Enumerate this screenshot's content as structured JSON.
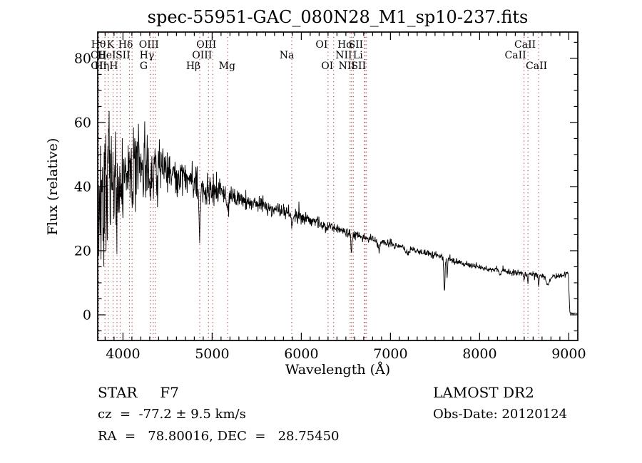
{
  "title": "spec-55951-GAC_080N28_M1_sp10-237.fits",
  "footer": {
    "class_label": "STAR     F7",
    "survey": "LAMOST DR2",
    "cz": "cz  =  -77.2 ± 9.5 km/s",
    "obs_date": "Obs-Date: 20120124",
    "radec": "RA  =   78.80016, DEC  =   28.75450"
  },
  "chart_data": {
    "type": "line",
    "title": "spec-55951-GAC_080N28_M1_sp10-237.fits",
    "xlabel": "Wavelength (Å)",
    "ylabel": "Flux (relative)",
    "xlim": [
      3717,
      9101
    ],
    "ylim": [
      -8,
      88.2
    ],
    "xticks": [
      4000,
      5000,
      6000,
      7000,
      8000,
      9000
    ],
    "yticks": [
      0,
      20,
      40,
      60,
      80
    ],
    "x_minor_step": 100,
    "y_minor_step": 5,
    "grid": false,
    "line_color": "#000000",
    "marker_line_color": "#a03434",
    "spectral_lines": [
      {
        "wavelength": 3727,
        "label": "OII",
        "row": 2,
        "dx": 9
      },
      {
        "wavelength": 3729,
        "label": "OII",
        "row": 3,
        "dx": 9
      },
      {
        "wavelength": 3798,
        "label": "Hθ",
        "row": 1,
        "dx": 0
      },
      {
        "wavelength": 3835,
        "label": "Hη",
        "row": 3,
        "dx": 0
      },
      {
        "wavelength": 3889,
        "label": "HeI",
        "row": 2,
        "dx": 0
      },
      {
        "wavelength": 3933,
        "label": "K",
        "row": 1,
        "dx": 0
      },
      {
        "wavelength": 3968,
        "label": "H",
        "row": 3,
        "dx": 0
      },
      {
        "wavelength": 4072,
        "label": "SII",
        "row": 2,
        "dx": 0
      },
      {
        "wavelength": 4102,
        "label": "Hδ",
        "row": 1,
        "dx": 0
      },
      {
        "wavelength": 4305,
        "label": "G",
        "row": 3,
        "dx": 0
      },
      {
        "wavelength": 4340,
        "label": "Hγ",
        "row": 2,
        "dx": 0
      },
      {
        "wavelength": 4363,
        "label": "OIII",
        "row": 1,
        "dx": 0
      },
      {
        "wavelength": 4861,
        "label": "Hβ",
        "row": 3,
        "dx": 0
      },
      {
        "wavelength": 4959,
        "label": "OIII",
        "row": 2,
        "dx": 0
      },
      {
        "wavelength": 5007,
        "label": "OIII",
        "row": 1,
        "dx": 0
      },
      {
        "wavelength": 5175,
        "label": "Mg",
        "row": 3,
        "dx": 8
      },
      {
        "wavelength": 5893,
        "label": "Na",
        "row": 2,
        "dx": 2
      },
      {
        "wavelength": 6300,
        "label": "OI",
        "row": 1,
        "dx": 0
      },
      {
        "wavelength": 6363,
        "label": "OI",
        "row": 3,
        "dx": 0
      },
      {
        "wavelength": 6548,
        "label": "NII",
        "row": 2,
        "dx": 0
      },
      {
        "wavelength": 6563,
        "label": "Hα",
        "row": 1,
        "dx": 0
      },
      {
        "wavelength": 6583,
        "label": "NII",
        "row": 3,
        "dx": 0
      },
      {
        "wavelength": 6707,
        "label": "Li",
        "row": 2,
        "dx": 0
      },
      {
        "wavelength": 6716,
        "label": "SII",
        "row": 1,
        "dx": -4
      },
      {
        "wavelength": 6731,
        "label": "SII",
        "row": 3,
        "dx": -2
      },
      {
        "wavelength": 8498,
        "label": "CaII",
        "row": 2,
        "dx": -3
      },
      {
        "wavelength": 8542,
        "label": "CaII",
        "row": 1,
        "dx": 5
      },
      {
        "wavelength": 8662,
        "label": "CaII",
        "row": 3,
        "dx": 6
      }
    ],
    "continuum": [
      [
        3718,
        33
      ],
      [
        3760,
        38
      ],
      [
        3810,
        41
      ],
      [
        3860,
        42.5
      ],
      [
        3920,
        43.5
      ],
      [
        4000,
        44.5
      ],
      [
        4090,
        45.5
      ],
      [
        4190,
        46.5
      ],
      [
        4340,
        46.5
      ],
      [
        4490,
        45
      ],
      [
        4590,
        44
      ],
      [
        4690,
        42.5
      ],
      [
        4790,
        40.8
      ],
      [
        4890,
        39.5
      ],
      [
        5040,
        38.5
      ],
      [
        5190,
        37
      ],
      [
        5340,
        36
      ],
      [
        5490,
        34.8
      ],
      [
        5640,
        33.5
      ],
      [
        5790,
        32.3
      ],
      [
        5940,
        31
      ],
      [
        6090,
        29.6
      ],
      [
        6240,
        28.3
      ],
      [
        6390,
        27
      ],
      [
        6540,
        25.6
      ],
      [
        6690,
        24.4
      ],
      [
        6840,
        23.2
      ],
      [
        6990,
        22.1
      ],
      [
        7140,
        21
      ],
      [
        7290,
        20
      ],
      [
        7440,
        19
      ],
      [
        7590,
        17.9
      ],
      [
        7740,
        16.6
      ],
      [
        7890,
        15.4
      ],
      [
        8050,
        14.6
      ],
      [
        8210,
        13.9
      ],
      [
        8360,
        13.3
      ],
      [
        8510,
        12.9
      ],
      [
        8660,
        12.4
      ],
      [
        8810,
        11.9
      ],
      [
        8940,
        12.5
      ],
      [
        8975,
        13.2
      ],
      [
        8995,
        12.8
      ],
      [
        9004,
        6
      ],
      [
        9012,
        0.5
      ],
      [
        9100,
        0.45
      ]
    ],
    "absorption_features": [
      [
        3933,
        13,
        6
      ],
      [
        3968,
        11,
        6
      ],
      [
        4101,
        10,
        6
      ],
      [
        4226,
        6,
        5
      ],
      [
        4305,
        7,
        9
      ],
      [
        4340,
        9,
        6
      ],
      [
        4383,
        6,
        5
      ],
      [
        4861,
        15,
        7
      ],
      [
        5175,
        4,
        9
      ],
      [
        5270,
        2.5,
        6
      ],
      [
        5893,
        3.5,
        7
      ],
      [
        6277,
        1.5,
        8
      ],
      [
        6563,
        6.5,
        6
      ],
      [
        6870,
        2.5,
        10
      ],
      [
        7190,
        1.5,
        18
      ],
      [
        7605,
        11,
        6
      ],
      [
        7635,
        6,
        5
      ],
      [
        8230,
        1.3,
        7
      ],
      [
        8498,
        2.2,
        5
      ],
      [
        8542,
        3.2,
        5
      ],
      [
        8662,
        3,
        5
      ],
      [
        8765,
        2.5,
        20
      ]
    ],
    "noise_sigma": [
      [
        3718,
        13
      ],
      [
        3790,
        12
      ],
      [
        3890,
        9.5
      ],
      [
        3990,
        7
      ],
      [
        4090,
        5.5
      ],
      [
        4240,
        4.2
      ],
      [
        4440,
        3.4
      ],
      [
        4640,
        2.9
      ],
      [
        4840,
        2.4
      ],
      [
        5040,
        1.9
      ],
      [
        5340,
        1.5
      ],
      [
        5740,
        1.15
      ],
      [
        6140,
        0.9
      ],
      [
        6540,
        0.75
      ],
      [
        6940,
        0.62
      ],
      [
        7540,
        0.52
      ],
      [
        8140,
        0.5
      ],
      [
        8740,
        0.45
      ],
      [
        8960,
        0.4
      ],
      [
        9007,
        0.15
      ],
      [
        9100,
        0.1
      ]
    ],
    "sample_range": [
      3719,
      9099
    ],
    "sample_step": 3.5,
    "spike_prob": 0.02,
    "spike_mult": 2.3,
    "flux_clamp": [
      -3,
      86
    ],
    "seed": 20120124
  }
}
